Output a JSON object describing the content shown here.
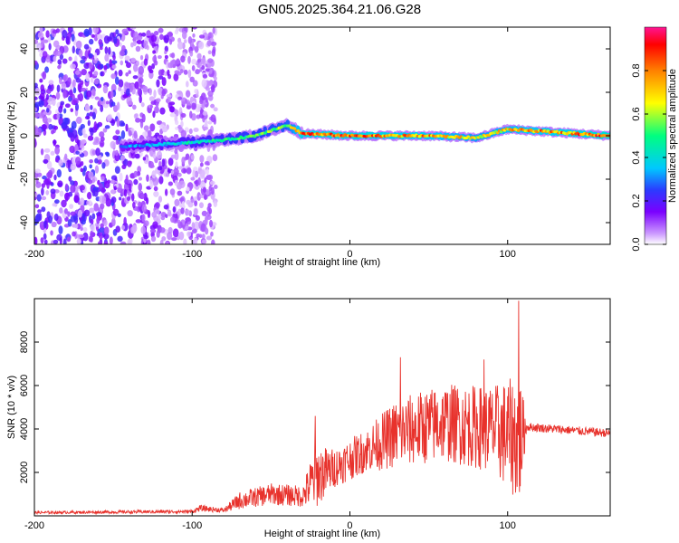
{
  "title": "GN05.2025.364.21.06.G28",
  "colors": {
    "snr_line": "#e8322c",
    "colormap": [
      "#ffffff",
      "#cc99ff",
      "#7a00ff",
      "#2b3bff",
      "#00c8ff",
      "#00ff80",
      "#ffff00",
      "#ff8000",
      "#ff0000",
      "#ff1493"
    ]
  },
  "chart_data": [
    {
      "type": "heatmap",
      "xlabel": "Height of straight line (km)",
      "ylabel": "Frequency (Hz)",
      "xlim": [
        -200,
        165
      ],
      "ylim": [
        -50,
        50
      ],
      "xticks": [
        -200,
        -100,
        0,
        100
      ],
      "yticks": [
        -40,
        -20,
        0,
        20,
        40
      ],
      "colorbar": {
        "label": "Normalized spectral amplitude",
        "range": [
          0,
          1
        ],
        "ticks": [
          "0.0",
          "0.2",
          "0.4",
          "0.6",
          "0.8"
        ]
      },
      "ridge": {
        "description_points": [
          {
            "x": -145,
            "y": -5,
            "amp": 0.3
          },
          {
            "x": -120,
            "y": -4,
            "amp": 0.4
          },
          {
            "x": -100,
            "y": -3,
            "amp": 0.45
          },
          {
            "x": -80,
            "y": -2,
            "amp": 0.5
          },
          {
            "x": -60,
            "y": 0,
            "amp": 0.55
          },
          {
            "x": -40,
            "y": 5,
            "amp": 0.6
          },
          {
            "x": -30,
            "y": 1,
            "amp": 0.85
          },
          {
            "x": 0,
            "y": 0,
            "amp": 0.85
          },
          {
            "x": 50,
            "y": 0,
            "amp": 0.8
          },
          {
            "x": 80,
            "y": -1,
            "amp": 0.7
          },
          {
            "x": 100,
            "y": 3,
            "amp": 0.75
          },
          {
            "x": 165,
            "y": 0,
            "amp": 0.9
          }
        ]
      },
      "noise_extent": [
        -200,
        -85
      ]
    },
    {
      "type": "line",
      "xlabel": "Height of straight line (km)",
      "ylabel": "SNR (10 * v/v)",
      "xlim": [
        -200,
        165
      ],
      "ylim": [
        0,
        10000
      ],
      "xticks": [
        -200,
        -100,
        0,
        100
      ],
      "yticks": [
        2000,
        4000,
        6000,
        8000
      ],
      "envelope": [
        {
          "x": -200,
          "mean": 150,
          "spread": 60
        },
        {
          "x": -100,
          "mean": 200,
          "spread": 80
        },
        {
          "x": -95,
          "mean": 350,
          "spread": 150
        },
        {
          "x": -80,
          "mean": 250,
          "spread": 100
        },
        {
          "x": -70,
          "mean": 700,
          "spread": 400
        },
        {
          "x": -50,
          "mean": 1000,
          "spread": 500
        },
        {
          "x": -30,
          "mean": 900,
          "spread": 500
        },
        {
          "x": -22,
          "mean": 1800,
          "spread": 1500
        },
        {
          "x": -10,
          "mean": 2200,
          "spread": 900
        },
        {
          "x": 10,
          "mean": 3000,
          "spread": 1000
        },
        {
          "x": 30,
          "mean": 3800,
          "spread": 1600
        },
        {
          "x": 60,
          "mean": 4300,
          "spread": 1800
        },
        {
          "x": 90,
          "mean": 4000,
          "spread": 2000
        },
        {
          "x": 108,
          "mean": 3500,
          "spread": 3000
        },
        {
          "x": 112,
          "mean": 4100,
          "spread": 200
        },
        {
          "x": 165,
          "mean": 3800,
          "spread": 200
        }
      ],
      "peaks": [
        {
          "x": -22,
          "y": 4600
        },
        {
          "x": 32,
          "y": 7300
        },
        {
          "x": 85,
          "y": 7200
        },
        {
          "x": 107,
          "y": 9900
        }
      ]
    }
  ]
}
